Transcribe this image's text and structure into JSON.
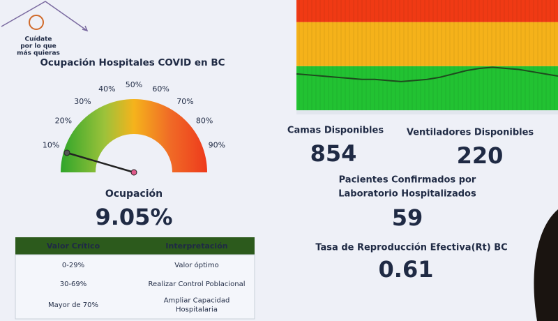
{
  "logo": {
    "lines": [
      "Cuídate",
      "por lo que",
      "más quieras"
    ]
  },
  "gauge": {
    "title": "Ocupación Hospitales COVID en BC",
    "label": "Ocupación",
    "value": {
      "value": 9.05,
      "label": "9.05%"
    },
    "lim": [
      0,
      100
    ],
    "ticks": [
      {
        "value": 10,
        "label": "10%"
      },
      {
        "value": 20,
        "label": "20%"
      },
      {
        "value": 30,
        "label": "30%"
      },
      {
        "value": 40,
        "label": "40%"
      },
      {
        "value": 50,
        "label": "50%"
      },
      {
        "value": 60,
        "label": "60%"
      },
      {
        "value": 70,
        "label": "70%"
      },
      {
        "value": 80,
        "label": "80%"
      },
      {
        "value": 90,
        "label": "90%"
      }
    ]
  },
  "table": {
    "header": [
      "Valor Crítico",
      "Interpretación"
    ],
    "rows": [
      [
        [
          "0-29%"
        ],
        [
          "Valor óptimo"
        ]
      ],
      [
        [
          "30-69%"
        ],
        [
          "Realizar Control Poblacional"
        ]
      ],
      [
        [
          "Mayor de 70%"
        ],
        [
          "Ampliar Capacidad",
          "Hospitalaria"
        ]
      ]
    ]
  },
  "trend": {
    "type": "line",
    "ylim": [
      0,
      100
    ],
    "color": "#1e4a1e",
    "bands": [
      {
        "from": 0,
        "to": 40,
        "color": "#22c232"
      },
      {
        "from": 40,
        "to": 80,
        "color": "#f5b21a"
      },
      {
        "from": 80,
        "to": 100,
        "color": "#f03a14"
      }
    ],
    "values": [
      33,
      32,
      31,
      30,
      29,
      28,
      28,
      27,
      26,
      27,
      28,
      30,
      33,
      36,
      38,
      39,
      38,
      37,
      35,
      33,
      31
    ]
  },
  "stats": [
    {
      "title": [
        "Camas Disponibles"
      ],
      "value": 854
    },
    {
      "title": [
        "Ventiladores Disponibles"
      ],
      "value": 220
    },
    {
      "title": [
        "Pacientes Confirmados por",
        "Laboratorio Hospitalizados"
      ],
      "value": 59
    },
    {
      "title": [
        "Tasa de Reproducción Efectiva(Rt) BC"
      ],
      "value": 0.61
    }
  ]
}
